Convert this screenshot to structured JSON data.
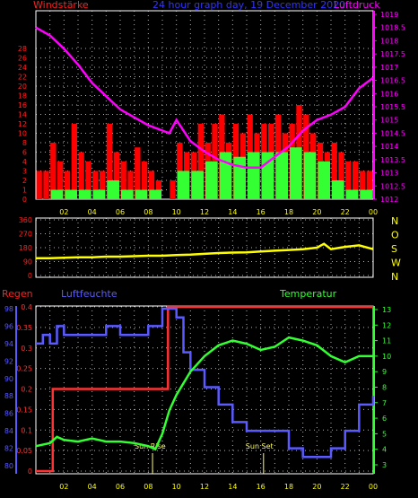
{
  "colors": {
    "wind": "#ff2020",
    "wind_gust": "#ff0000",
    "wind_avg": "#33ff33",
    "pressure": "#ff00ff",
    "direction": "#ffff00",
    "rain": "#ff3333",
    "humidity": "#5a5aff",
    "temperature": "#33ff33",
    "time_axis": "#ffff00",
    "title": "#3333ff",
    "grid": "#ffffff"
  },
  "chart_data": [
    {
      "type": "bar",
      "panel": "wind",
      "title": "24 hour graph day, 19 December 2020",
      "ylabel_left": "Windstärke",
      "ylabel_right": "Luftdruck",
      "x_ticks": [
        "02",
        "04",
        "06",
        "08",
        "10",
        "12",
        "14",
        "16",
        "18",
        "20",
        "22",
        "00"
      ],
      "y_left_ticks": [
        0,
        1,
        2,
        3,
        4,
        6,
        8,
        10,
        12,
        14,
        16,
        18,
        20,
        22,
        24,
        26,
        28
      ],
      "y_right_ticks": [
        1012,
        1012.5,
        1013,
        1013.5,
        1014,
        1014.5,
        1015,
        1015.5,
        1016,
        1016.5,
        1017,
        1017.5,
        1018,
        1018.5,
        1019
      ],
      "y_right_lim": [
        1012,
        1019
      ],
      "grid": true,
      "series": [
        {
          "name": "Windstärke",
          "hours": [
            0,
            0.5,
            1,
            1.5,
            2,
            2.5,
            3,
            3.5,
            4,
            4.5,
            5,
            5.5,
            6,
            6.5,
            7,
            7.5,
            8,
            8.5,
            9,
            9.5,
            10,
            10.5,
            11,
            11.5,
            12,
            12.5,
            13,
            13.5,
            14,
            14.5,
            15,
            15.5,
            16,
            16.5,
            17,
            17.5,
            18,
            18.5,
            19,
            19.5,
            20,
            20.5,
            21,
            21.5,
            22,
            22.5,
            23,
            23.5
          ],
          "values": [
            3,
            3,
            8,
            4,
            3,
            12,
            6,
            4,
            3,
            3,
            12,
            6,
            4,
            3,
            7,
            4,
            3,
            2,
            0,
            2,
            8,
            6,
            6,
            12,
            8,
            12,
            14,
            8,
            12,
            10,
            14,
            10,
            12,
            12,
            14,
            10,
            12,
            16,
            14,
            10,
            8,
            6,
            8,
            6,
            4,
            4,
            3,
            3
          ]
        },
        {
          "name": "Mittelwind",
          "hours": [
            0,
            1,
            2,
            3,
            4,
            5,
            6,
            7,
            8,
            9,
            10,
            11,
            12,
            13,
            14,
            15,
            16,
            17,
            18,
            19,
            20,
            21,
            22,
            23
          ],
          "values": [
            0,
            1,
            1,
            1,
            1,
            2,
            1,
            1,
            1,
            0,
            3,
            3,
            4,
            6,
            5,
            6,
            6,
            6,
            7,
            6,
            4,
            2,
            1,
            1
          ]
        },
        {
          "name": "Luftdruck",
          "hours": [
            0,
            1,
            2,
            3,
            4,
            5,
            6,
            7,
            8,
            9,
            9.5,
            10,
            11,
            12,
            13,
            14,
            15,
            16,
            17,
            18,
            19,
            20,
            21,
            22,
            23,
            24
          ],
          "values": [
            1018.5,
            1018.2,
            1017.7,
            1017.1,
            1016.4,
            1015.9,
            1015.4,
            1015.1,
            1014.8,
            1014.6,
            1014.5,
            1015.0,
            1014.2,
            1013.8,
            1013.5,
            1013.3,
            1013.2,
            1013.2,
            1013.6,
            1014.0,
            1014.6,
            1015.0,
            1015.2,
            1015.5,
            1016.2,
            1016.6
          ]
        }
      ]
    },
    {
      "type": "line",
      "panel": "direction",
      "y_ticks": [
        0,
        90,
        180,
        270,
        360
      ],
      "y_right_labels": [
        "N",
        "W",
        "S",
        "O",
        "N"
      ],
      "ylim": [
        0,
        360
      ],
      "grid": true,
      "series": [
        {
          "name": "Windrichtung",
          "hours": [
            0,
            1,
            2,
            3,
            4,
            5,
            6,
            7,
            8,
            9,
            10,
            11,
            12,
            13,
            14,
            15,
            16,
            17,
            18,
            19,
            20,
            20.5,
            21,
            22,
            23,
            24
          ],
          "values": [
            112,
            112,
            115,
            118,
            118,
            122,
            122,
            125,
            128,
            128,
            132,
            135,
            140,
            145,
            148,
            150,
            155,
            160,
            165,
            170,
            180,
            205,
            170,
            185,
            195,
            170
          ]
        }
      ]
    },
    {
      "type": "line",
      "panel": "climate",
      "ylabel_left_1": "Regen",
      "ylabel_left_2": "Luftfeuchte",
      "ylabel_right": "Temperatur",
      "x_ticks": [
        "02",
        "04",
        "06",
        "08",
        "10",
        "12",
        "14",
        "16",
        "18",
        "20",
        "22",
        "00"
      ],
      "rain_ticks": [
        0,
        0.05,
        0.1,
        0.15,
        0.2,
        0.25,
        0.3,
        0.35,
        0.4
      ],
      "humidity_ticks": [
        80,
        82,
        84,
        86,
        88,
        90,
        92,
        94,
        96,
        98
      ],
      "temperature_ticks": [
        3,
        4,
        5,
        6,
        7,
        8,
        9,
        10,
        11,
        12,
        13
      ],
      "annotations": [
        {
          "label": "Sun Rise",
          "hour": 8.3
        },
        {
          "label": "Sun Set",
          "hour": 16.2
        }
      ],
      "grid": true,
      "series": [
        {
          "name": "Regen",
          "hours": [
            0,
            1.2,
            1.2,
            9.4,
            9.4,
            24
          ],
          "values": [
            0,
            0,
            0.2,
            0.2,
            0.4,
            0.4
          ]
        },
        {
          "name": "Luftfeuchte",
          "hours": [
            0,
            0.5,
            1,
            1.5,
            2,
            3,
            4,
            5,
            6,
            7,
            8,
            9,
            9.5,
            10,
            10.5,
            11,
            12,
            13,
            14,
            15,
            16,
            17,
            18,
            19,
            20,
            21,
            22,
            23,
            24
          ],
          "values": [
            94,
            95,
            94,
            96,
            95,
            95,
            95,
            96,
            95,
            95,
            96,
            98,
            98,
            97,
            93,
            91,
            89,
            87,
            85,
            84,
            84,
            84,
            82,
            81,
            81,
            82,
            84,
            87,
            88
          ]
        },
        {
          "name": "Temperatur",
          "hours": [
            0,
            1,
            1.5,
            2,
            3,
            4,
            5,
            6,
            7,
            8,
            8.5,
            9,
            9.5,
            10,
            11,
            12,
            13,
            14,
            15,
            16,
            17,
            18,
            19,
            20,
            21,
            22,
            23,
            24
          ],
          "values": [
            4.2,
            4.4,
            4.8,
            4.6,
            4.5,
            4.7,
            4.5,
            4.5,
            4.4,
            4.2,
            4.0,
            5.0,
            6.5,
            7.5,
            9.0,
            10.0,
            10.7,
            11.0,
            10.8,
            10.4,
            10.6,
            11.2,
            11.0,
            10.7,
            10.0,
            9.6,
            10.0,
            10.0
          ]
        }
      ]
    }
  ]
}
